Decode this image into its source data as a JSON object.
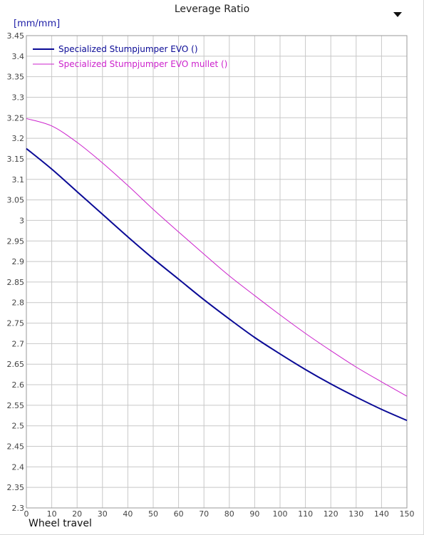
{
  "chart_data": {
    "type": "line",
    "title": "Leverage Ratio",
    "ylabel": "[mm/mm]",
    "xlabel": "Wheel travel",
    "xlim": [
      0,
      150
    ],
    "ylim": [
      2.3,
      3.45
    ],
    "x_ticks": [
      0,
      10,
      20,
      30,
      40,
      50,
      60,
      70,
      80,
      90,
      100,
      110,
      120,
      130,
      140,
      150
    ],
    "y_ticks": [
      2.3,
      2.35,
      2.4,
      2.45,
      2.5,
      2.55,
      2.6,
      2.65,
      2.7,
      2.75,
      2.8,
      2.85,
      2.9,
      2.95,
      3,
      3.05,
      3.1,
      3.15,
      3.2,
      3.25,
      3.3,
      3.35,
      3.4,
      3.45
    ],
    "grid": true,
    "legend_position": "top-left",
    "x": [
      0,
      10,
      20,
      30,
      40,
      50,
      60,
      70,
      80,
      90,
      100,
      110,
      120,
      130,
      140,
      150
    ],
    "series": [
      {
        "name": "Specialized Stumpjumper EVO ()",
        "color": "#0a0a96",
        "values": [
          3.175,
          3.125,
          3.07,
          3.015,
          2.96,
          2.907,
          2.857,
          2.807,
          2.76,
          2.715,
          2.675,
          2.637,
          2.602,
          2.57,
          2.54,
          2.513
        ]
      },
      {
        "name": "Specialized Stumpjumper EVO mullet ()",
        "color": "#cc22cc",
        "values": [
          3.248,
          3.23,
          3.19,
          3.14,
          3.085,
          3.027,
          2.972,
          2.918,
          2.865,
          2.817,
          2.77,
          2.725,
          2.683,
          2.643,
          2.607,
          2.572
        ]
      }
    ]
  }
}
